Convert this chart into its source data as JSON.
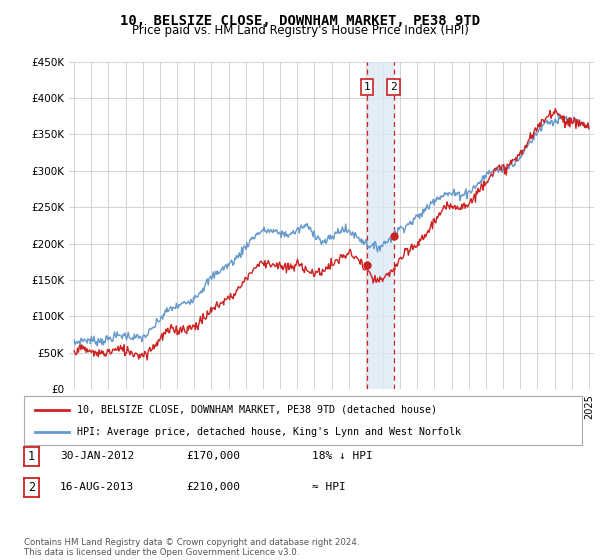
{
  "title": "10, BELSIZE CLOSE, DOWNHAM MARKET, PE38 9TD",
  "subtitle": "Price paid vs. HM Land Registry's House Price Index (HPI)",
  "legend_line1": "10, BELSIZE CLOSE, DOWNHAM MARKET, PE38 9TD (detached house)",
  "legend_line2": "HPI: Average price, detached house, King's Lynn and West Norfolk",
  "footnote": "Contains HM Land Registry data © Crown copyright and database right 2024.\nThis data is licensed under the Open Government Licence v3.0.",
  "table_rows": [
    {
      "num": "1",
      "date": "30-JAN-2012",
      "price": "£170,000",
      "rel": "18% ↓ HPI"
    },
    {
      "num": "2",
      "date": "16-AUG-2013",
      "price": "£210,000",
      "rel": "≈ HPI"
    }
  ],
  "sale1_year": 2012.08,
  "sale1_price": 170000,
  "sale2_year": 2013.62,
  "sale2_price": 210000,
  "hpi_color": "#6699cc",
  "price_color": "#cc2222",
  "ylim_low": 0,
  "ylim_high": 450000,
  "xlim_low": 1994.7,
  "xlim_high": 2025.3,
  "shade_color": "#dce9f5",
  "background_color": "#ffffff",
  "grid_color": "#cccccc"
}
